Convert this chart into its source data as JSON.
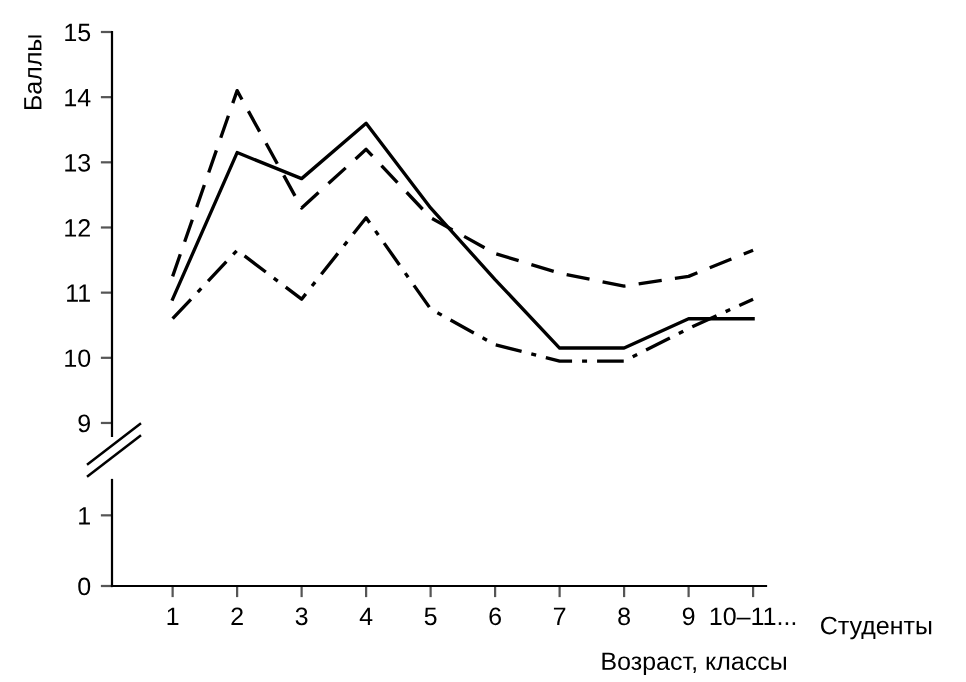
{
  "chart_data": [
    {
      "type": "line",
      "ylabel": "Баллы",
      "ylim": [
        8.8,
        15
      ],
      "yticks": [
        9,
        10,
        11,
        12,
        13,
        14,
        15
      ],
      "tick_labels": "y",
      "grid": false,
      "legend": false,
      "marker": "none",
      "series": [
        {
          "color": "#000000",
          "line_style": "solid",
          "values": [
            10.9,
            13.15,
            12.75,
            13.6,
            12.3,
            11.2,
            10.15,
            10.15,
            10.6,
            10.6
          ]
        },
        {
          "color": "#000000",
          "line_style": "dashed",
          "values": [
            11.25,
            14.1,
            12.3,
            13.2,
            12.15,
            11.6,
            11.3,
            11.1,
            11.25,
            11.65
          ]
        },
        {
          "color": "#000000",
          "line_style": "dashdot",
          "values": [
            10.6,
            11.65,
            10.9,
            12.15,
            10.75,
            10.2,
            9.95,
            9.95,
            10.45,
            10.9
          ]
        }
      ]
    },
    {
      "type": "line",
      "xlabel": "Возраст, классы",
      "categories": [
        "1",
        "2",
        "3",
        "4",
        "5",
        "6",
        "7",
        "8",
        "9",
        "10–11..."
      ],
      "ylim": [
        0,
        1.5
      ],
      "yticks": [
        0,
        1
      ],
      "grid": false,
      "legend": false,
      "annotations": [
        "Студенты"
      ]
    }
  ]
}
